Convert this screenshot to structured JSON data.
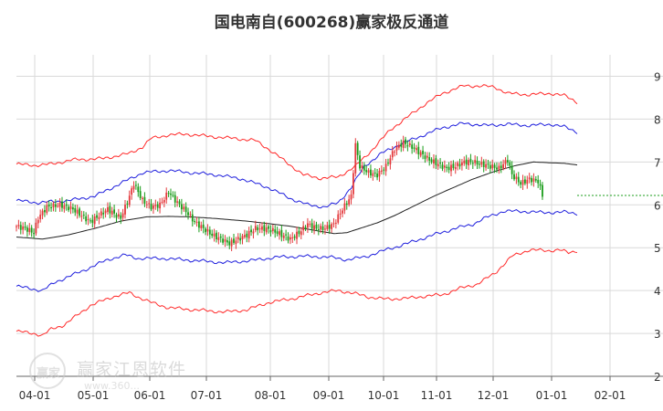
{
  "chart_data": {
    "type": "candlestick",
    "title": "国电南自(600268)赢家极反通道",
    "x_ticks": [
      "04-01",
      "05-01",
      "06-01",
      "07-01",
      "08-01",
      "09-01",
      "10-01",
      "11-01",
      "12-01",
      "01-01",
      "02-01"
    ],
    "y_ticks": [
      "2",
      "3",
      "4",
      "5",
      "6",
      "7",
      "8",
      "9"
    ],
    "ylim": [
      2.0,
      9.5
    ],
    "grid": true,
    "colors": {
      "up": "#e4393c",
      "down": "#1a9c1a",
      "outer": "#ff2a2a",
      "inner": "#1f1fdd",
      "middle": "#222222",
      "last": "#1a9c1a",
      "grid": "#d9d9d9",
      "axis": "#666666"
    },
    "middle_line": [
      [
        0,
        5.25
      ],
      [
        12,
        5.2
      ],
      [
        24,
        5.3
      ],
      [
        36,
        5.45
      ],
      [
        48,
        5.62
      ],
      [
        60,
        5.72
      ],
      [
        70,
        5.73
      ],
      [
        80,
        5.72
      ],
      [
        92,
        5.68
      ],
      [
        106,
        5.62
      ],
      [
        118,
        5.55
      ],
      [
        126,
        5.5
      ],
      [
        132,
        5.45
      ],
      [
        140,
        5.38
      ],
      [
        146,
        5.33
      ],
      [
        152,
        5.35
      ],
      [
        158,
        5.45
      ],
      [
        166,
        5.58
      ],
      [
        174,
        5.75
      ],
      [
        182,
        5.95
      ],
      [
        192,
        6.2
      ],
      [
        200,
        6.38
      ],
      [
        210,
        6.6
      ],
      [
        220,
        6.78
      ],
      [
        230,
        6.92
      ],
      [
        238,
        7.0
      ],
      [
        246,
        6.98
      ],
      [
        252,
        6.97
      ],
      [
        258,
        6.93
      ]
    ],
    "inner_upper": [
      [
        0,
        6.1
      ],
      [
        10,
        6.05
      ],
      [
        24,
        6.1
      ],
      [
        36,
        6.2
      ],
      [
        48,
        6.5
      ],
      [
        58,
        6.75
      ],
      [
        70,
        6.8
      ],
      [
        80,
        6.75
      ],
      [
        92,
        6.7
      ],
      [
        104,
        6.6
      ],
      [
        116,
        6.4
      ],
      [
        126,
        6.15
      ],
      [
        134,
        6.0
      ],
      [
        142,
        5.95
      ],
      [
        148,
        6.05
      ],
      [
        154,
        6.4
      ],
      [
        160,
        6.9
      ],
      [
        168,
        7.2
      ],
      [
        176,
        7.4
      ],
      [
        186,
        7.6
      ],
      [
        196,
        7.8
      ],
      [
        206,
        7.9
      ],
      [
        216,
        7.85
      ],
      [
        226,
        7.88
      ],
      [
        236,
        7.85
      ],
      [
        246,
        7.88
      ],
      [
        252,
        7.82
      ],
      [
        258,
        7.7
      ]
    ],
    "inner_lower": [
      [
        0,
        4.1
      ],
      [
        12,
        4.0
      ],
      [
        18,
        4.2
      ],
      [
        30,
        4.45
      ],
      [
        42,
        4.72
      ],
      [
        50,
        4.83
      ],
      [
        56,
        4.75
      ],
      [
        68,
        4.75
      ],
      [
        82,
        4.7
      ],
      [
        96,
        4.65
      ],
      [
        108,
        4.7
      ],
      [
        120,
        4.78
      ],
      [
        132,
        4.8
      ],
      [
        144,
        4.78
      ],
      [
        152,
        4.72
      ],
      [
        160,
        4.78
      ],
      [
        170,
        4.95
      ],
      [
        180,
        5.1
      ],
      [
        192,
        5.3
      ],
      [
        202,
        5.45
      ],
      [
        210,
        5.55
      ],
      [
        216,
        5.7
      ],
      [
        224,
        5.85
      ],
      [
        232,
        5.85
      ],
      [
        242,
        5.82
      ],
      [
        252,
        5.83
      ],
      [
        258,
        5.8
      ]
    ],
    "outer_upper": [
      [
        0,
        6.95
      ],
      [
        8,
        6.92
      ],
      [
        16,
        6.95
      ],
      [
        26,
        7.05
      ],
      [
        40,
        7.08
      ],
      [
        52,
        7.2
      ],
      [
        58,
        7.35
      ],
      [
        62,
        7.55
      ],
      [
        70,
        7.63
      ],
      [
        78,
        7.65
      ],
      [
        88,
        7.6
      ],
      [
        100,
        7.55
      ],
      [
        110,
        7.5
      ],
      [
        116,
        7.3
      ],
      [
        124,
        7.0
      ],
      [
        132,
        6.7
      ],
      [
        140,
        6.62
      ],
      [
        148,
        6.65
      ],
      [
        156,
        6.9
      ],
      [
        164,
        7.3
      ],
      [
        172,
        7.75
      ],
      [
        180,
        8.05
      ],
      [
        188,
        8.35
      ],
      [
        196,
        8.6
      ],
      [
        206,
        8.78
      ],
      [
        214,
        8.77
      ],
      [
        220,
        8.75
      ],
      [
        226,
        8.6
      ],
      [
        236,
        8.57
      ],
      [
        246,
        8.6
      ],
      [
        252,
        8.55
      ],
      [
        258,
        8.4
      ]
    ],
    "outer_lower": [
      [
        0,
        3.05
      ],
      [
        8,
        3.0
      ],
      [
        12,
        2.95
      ],
      [
        16,
        3.1
      ],
      [
        22,
        3.2
      ],
      [
        26,
        3.35
      ],
      [
        34,
        3.65
      ],
      [
        44,
        3.85
      ],
      [
        52,
        3.95
      ],
      [
        56,
        3.85
      ],
      [
        62,
        3.72
      ],
      [
        70,
        3.6
      ],
      [
        82,
        3.55
      ],
      [
        96,
        3.5
      ],
      [
        106,
        3.55
      ],
      [
        116,
        3.72
      ],
      [
        128,
        3.82
      ],
      [
        140,
        3.95
      ],
      [
        148,
        4.0
      ],
      [
        154,
        3.95
      ],
      [
        162,
        3.85
      ],
      [
        170,
        3.8
      ],
      [
        180,
        3.82
      ],
      [
        190,
        3.88
      ],
      [
        196,
        3.9
      ],
      [
        204,
        4.05
      ],
      [
        212,
        4.15
      ],
      [
        220,
        4.4
      ],
      [
        228,
        4.8
      ],
      [
        236,
        4.95
      ],
      [
        244,
        4.93
      ],
      [
        250,
        4.95
      ],
      [
        254,
        4.88
      ],
      [
        258,
        4.93
      ]
    ],
    "last_price": 6.22,
    "last_price_from_index": 258
  }
}
